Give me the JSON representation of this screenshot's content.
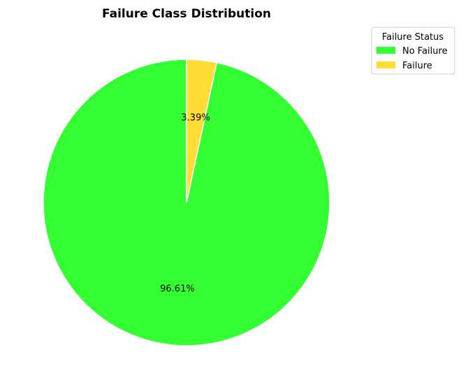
{
  "chart_data": {
    "type": "pie",
    "title": "Failure Class Distribution",
    "categories": [
      "No Failure",
      "Failure"
    ],
    "values": [
      96.61,
      3.39
    ],
    "labels": [
      "96.61%",
      "3.39%"
    ],
    "colors": [
      "#33ff33",
      "#ffdd33"
    ],
    "start_angle": "top, counter-clockwise",
    "legend": {
      "title": "Failure Status",
      "placement": "upper-right-outside",
      "items": [
        "No Failure",
        "Failure"
      ]
    }
  }
}
